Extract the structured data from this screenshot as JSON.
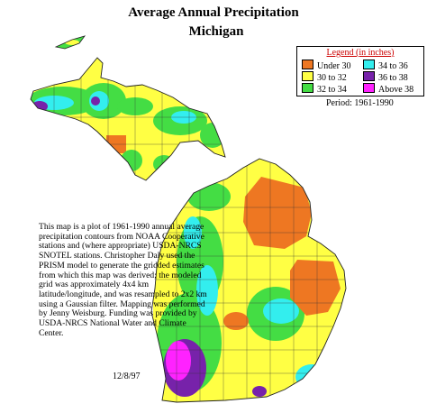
{
  "header": {
    "title": "Average Annual Precipitation",
    "subtitle": "Michigan"
  },
  "legend": {
    "title": "Legend (in inches)",
    "items": [
      {
        "label": "Under 30",
        "color": "#ee7722"
      },
      {
        "label": "30 to 32",
        "color": "#ffff44"
      },
      {
        "label": "32 to 34",
        "color": "#44dd44"
      },
      {
        "label": "34 to 36",
        "color": "#33eeee"
      },
      {
        "label": "36 to 38",
        "color": "#7722aa"
      },
      {
        "label": "Above 38",
        "color": "#ff22ff"
      }
    ]
  },
  "period": "Period: 1961-1990",
  "note": "This map is a plot of 1961-1990 annual average precipitation contours from NOAA Cooperative stations and (where appropriate) USDA-NRCS SNOTEL stations. Christopher Daly used the PRISM model to generate the gridded estimates from which this map was derived; the modeled grid was approximately 4x4 km latitude/longitude, and was resampled to 2x2 km using a Gaussian filter. Mapping was performed by Jenny Weisburg. Funding was provided by USDA-NRCS National Water and Climate Center.",
  "date": "12/8/97"
}
